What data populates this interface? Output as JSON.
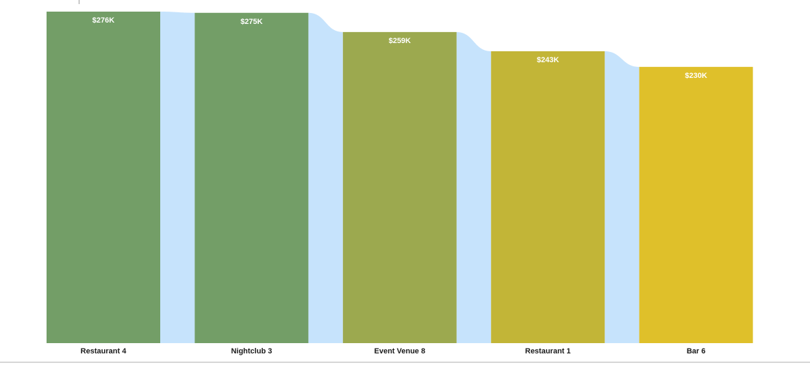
{
  "chart_data": {
    "type": "bar",
    "style": "ribbon",
    "categories": [
      "Restaurant 4",
      "Nightclub 3",
      "Event Venue 8",
      "Restaurant 1",
      "Bar 6"
    ],
    "values": [
      276,
      275,
      259,
      243,
      230
    ],
    "value_labels": [
      "$276K",
      "$275K",
      "$259K",
      "$243K",
      "$230K"
    ],
    "value_unit": "K USD",
    "ylim": [
      0,
      276
    ],
    "grid": false,
    "legend": "none",
    "colors": {
      "bars": [
        "#739e67",
        "#739e67",
        "#9ca94f",
        "#c2b537",
        "#dfc02a"
      ],
      "ribbon": "#c6e3fc",
      "label_text": "#ffffff",
      "category_text": "#1a1a1a"
    }
  }
}
